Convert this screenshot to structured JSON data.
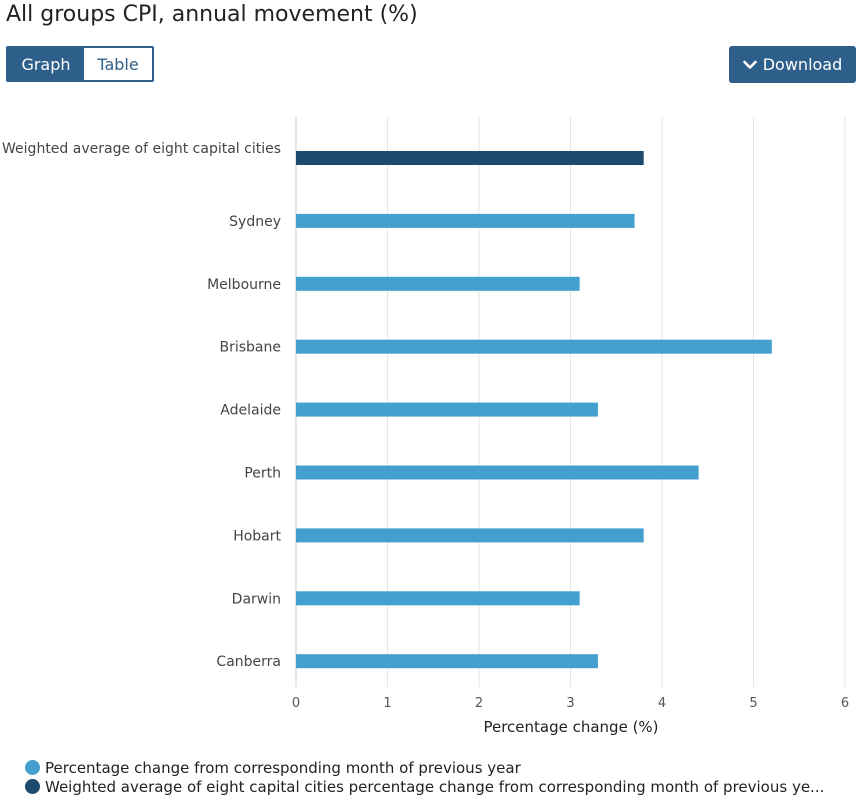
{
  "header": {
    "title": "All groups CPI, annual movement (%)"
  },
  "toggle": {
    "graph_label": "Graph",
    "table_label": "Table"
  },
  "download": {
    "label": "Download"
  },
  "colors": {
    "accent": "#2d5f8a",
    "series_light": "#429fce",
    "series_dark": "#1e4a6e",
    "grid": "#e6e6e6"
  },
  "chart_data": {
    "type": "bar",
    "orientation": "horizontal",
    "categories": [
      "Weighted average of eight capital cities",
      "Sydney",
      "Melbourne",
      "Brisbane",
      "Adelaide",
      "Perth",
      "Hobart",
      "Darwin",
      "Canberra"
    ],
    "values": [
      3.8,
      3.7,
      3.1,
      5.2,
      3.3,
      4.4,
      3.8,
      3.1,
      3.3
    ],
    "series_index": [
      1,
      0,
      0,
      0,
      0,
      0,
      0,
      0,
      0
    ],
    "series": [
      {
        "name": "Percentage change from corresponding month of previous year",
        "color": "#429fce"
      },
      {
        "name": "Weighted average of eight capital cities percentage change from corresponding month of previous year",
        "color": "#1e4a6e"
      }
    ],
    "xlabel": "Percentage change (%)",
    "xlim": [
      0,
      6
    ],
    "xticks": [
      "0",
      "1",
      "2",
      "3",
      "4",
      "5",
      "6"
    ],
    "grid": true,
    "legend": "bottom-left"
  },
  "legend": {
    "items": [
      {
        "label": "Percentage change from corresponding month of previous year"
      },
      {
        "label": "Weighted average of eight capital cities percentage change from corresponding month of previous ye..."
      }
    ]
  }
}
